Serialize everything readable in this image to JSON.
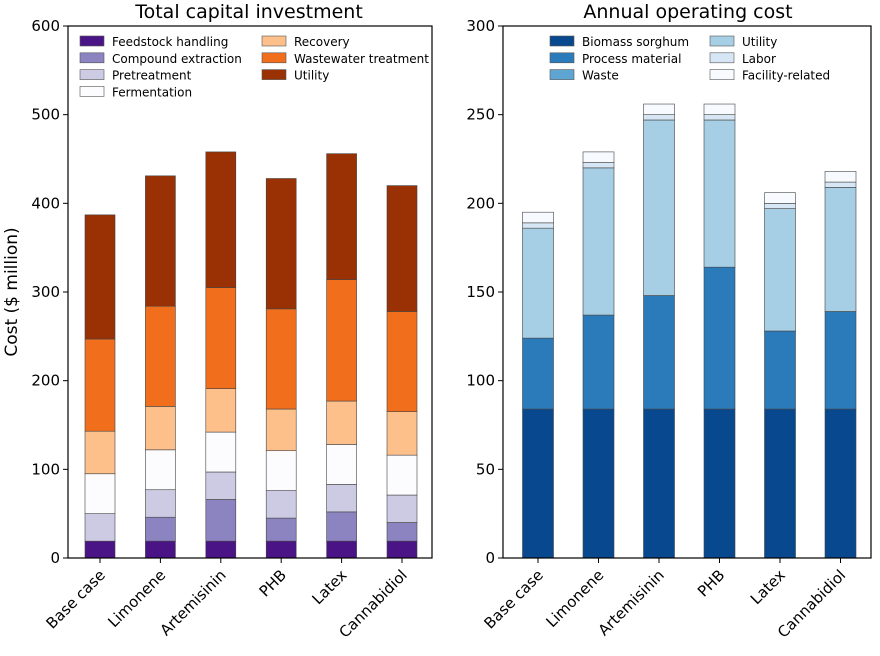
{
  "chart_data": [
    {
      "type": "bar",
      "stacked": true,
      "title": "Total capital investment",
      "ylabel": "Cost ($ million)",
      "xlabel": "",
      "ylim": [
        0,
        600
      ],
      "yticks": [
        0,
        100,
        200,
        300,
        400,
        500,
        600
      ],
      "categories": [
        "Base case",
        "Limonene",
        "Artemisinin",
        "PHB",
        "Latex",
        "Cannabidiol"
      ],
      "series": [
        {
          "name": "Feedstock handling",
          "color": "#4a1486",
          "values": [
            19,
            19,
            19,
            19,
            19,
            19
          ]
        },
        {
          "name": "Compound extraction",
          "color": "#8c83c1",
          "values": [
            0,
            27,
            47,
            26,
            33,
            21
          ]
        },
        {
          "name": "Pretreatment",
          "color": "#cccbe3",
          "values": [
            31,
            31,
            31,
            31,
            31,
            31
          ]
        },
        {
          "name": "Fermentation",
          "color": "#fcfbfd",
          "values": [
            45,
            45,
            45,
            45,
            45,
            45
          ]
        },
        {
          "name": "Recovery",
          "color": "#fdc08b",
          "values": [
            48,
            49,
            49,
            47,
            49,
            49
          ]
        },
        {
          "name": "Wastewater treatment",
          "color": "#f16e1c",
          "values": [
            104,
            113,
            114,
            113,
            137,
            113
          ]
        },
        {
          "name": "Utility",
          "color": "#9a3104",
          "values": [
            140,
            147,
            153,
            147,
            142,
            142
          ]
        }
      ],
      "legend": {
        "placement": "top-left",
        "columns": 2
      }
    },
    {
      "type": "bar",
      "stacked": true,
      "title": "Annual operating cost",
      "ylabel": "",
      "xlabel": "",
      "ylim": [
        0,
        300
      ],
      "yticks": [
        0,
        50,
        100,
        150,
        200,
        250,
        300
      ],
      "categories": [
        "Base case",
        "Limonene",
        "Artemisinin",
        "PHB",
        "Latex",
        "Cannabidiol"
      ],
      "series": [
        {
          "name": "Biomass sorghum",
          "color": "#08488e",
          "values": [
            84,
            84,
            84,
            84,
            84,
            84
          ]
        },
        {
          "name": "Process material",
          "color": "#2b7bba",
          "values": [
            40,
            53,
            64,
            80,
            44,
            55
          ]
        },
        {
          "name": "Waste",
          "color": "#5fa5d3",
          "values": [
            0,
            0,
            0,
            0,
            0,
            0
          ]
        },
        {
          "name": "Utility",
          "color": "#a6cee4",
          "values": [
            62,
            83,
            99,
            83,
            69,
            70
          ]
        },
        {
          "name": "Labor",
          "color": "#d7e6f4",
          "values": [
            3,
            3,
            3,
            3,
            3,
            3
          ]
        },
        {
          "name": "Facility-related",
          "color": "#f7fbff",
          "values": [
            6,
            6,
            6,
            6,
            6,
            6
          ]
        }
      ],
      "legend": {
        "placement": "top-left",
        "columns": 2
      }
    }
  ]
}
